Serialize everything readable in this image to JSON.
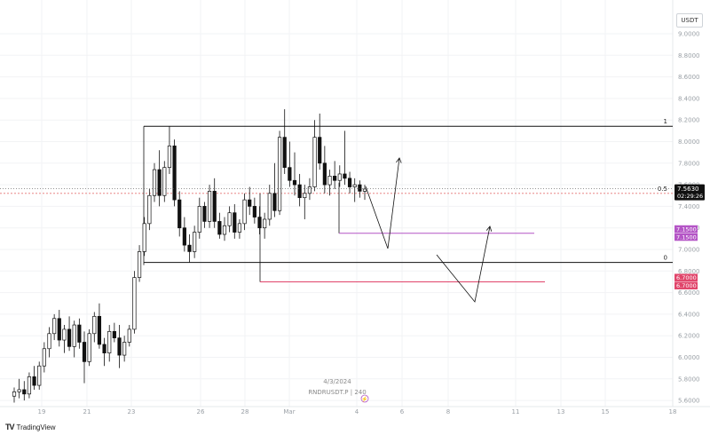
{
  "currency_button": "USDT",
  "watermark": {
    "date": "4/3/2024",
    "symbol": "RNDRUSDT.P | 240"
  },
  "brand": "TradingView",
  "colors": {
    "up": "#ffffff",
    "down": "#111111",
    "fib_line": "#111111",
    "half_line": "#e57373",
    "purple_level": "#b455c6",
    "pink_level": "#e0446a",
    "price_tag": "#111111",
    "grid": "#f2f3f5",
    "axis_text": "#9aa0a6"
  },
  "chart_data": {
    "type": "candlestick",
    "y_axis": {
      "ticks": [
        "9.0000",
        "8.8000",
        "8.6000",
        "8.4000",
        "8.2000",
        "8.0000",
        "7.8000",
        "7.6000",
        "7.4000",
        "7.2000",
        "7.0000",
        "6.8000",
        "6.6000",
        "6.4000",
        "6.2000",
        "6.0000",
        "5.8000",
        "5.6000"
      ],
      "ylim": [
        5.54,
        9.14
      ]
    },
    "x_axis": {
      "ticks": [
        "19",
        "21",
        "23",
        "26",
        "28",
        "Mar",
        "4",
        "6",
        "8",
        "11",
        "13",
        "15",
        "18"
      ]
    },
    "current_price": {
      "value": "7.5630",
      "countdown": "02:29:26"
    },
    "fib_levels": [
      {
        "label": "1",
        "value": 8.142
      },
      {
        "label": "0.5",
        "value": 7.52
      },
      {
        "label": "0",
        "value": 6.88
      }
    ],
    "horizontal_levels": [
      {
        "label": "7.1500",
        "value": 7.15,
        "color": "purple",
        "tags": [
          "7.1500",
          "7.1500"
        ]
      },
      {
        "label": "6.7000",
        "value": 6.7,
        "color": "pink",
        "tags": [
          "6.7000",
          "6.7000"
        ]
      }
    ],
    "candles": [
      [
        5.64,
        5.72,
        5.58,
        5.68
      ],
      [
        5.68,
        5.8,
        5.62,
        5.7
      ],
      [
        5.7,
        5.78,
        5.6,
        5.66
      ],
      [
        5.66,
        5.86,
        5.62,
        5.82
      ],
      [
        5.82,
        5.92,
        5.7,
        5.74
      ],
      [
        5.74,
        5.96,
        5.7,
        5.92
      ],
      [
        5.92,
        6.14,
        5.86,
        6.08
      ],
      [
        6.08,
        6.28,
        6.0,
        6.22
      ],
      [
        6.22,
        6.4,
        6.16,
        6.36
      ],
      [
        6.36,
        6.44,
        6.1,
        6.16
      ],
      [
        6.16,
        6.3,
        6.04,
        6.26
      ],
      [
        6.26,
        6.38,
        6.06,
        6.1
      ],
      [
        6.1,
        6.34,
        6.0,
        6.3
      ],
      [
        6.3,
        6.36,
        6.08,
        6.14
      ],
      [
        6.14,
        6.24,
        5.76,
        5.96
      ],
      [
        5.96,
        6.26,
        5.92,
        6.22
      ],
      [
        6.22,
        6.42,
        6.14,
        6.38
      ],
      [
        6.38,
        6.5,
        6.08,
        6.12
      ],
      [
        6.12,
        6.18,
        5.92,
        6.04
      ],
      [
        6.04,
        6.3,
        5.96,
        6.24
      ],
      [
        6.24,
        6.32,
        6.14,
        6.18
      ],
      [
        6.18,
        6.3,
        5.9,
        6.02
      ],
      [
        6.02,
        6.2,
        5.96,
        6.14
      ],
      [
        6.14,
        6.3,
        6.1,
        6.26
      ],
      [
        6.26,
        6.8,
        6.22,
        6.74
      ],
      [
        6.74,
        7.04,
        6.7,
        6.98
      ],
      [
        6.98,
        7.3,
        6.94,
        7.24
      ],
      [
        7.24,
        7.56,
        7.18,
        7.5
      ],
      [
        7.5,
        7.8,
        7.44,
        7.74
      ],
      [
        7.74,
        7.92,
        7.4,
        7.5
      ],
      [
        7.5,
        7.82,
        7.44,
        7.76
      ],
      [
        7.76,
        8.14,
        7.7,
        7.96
      ],
      [
        7.96,
        8.02,
        7.4,
        7.46
      ],
      [
        7.46,
        7.54,
        7.12,
        7.2
      ],
      [
        7.2,
        7.3,
        6.98,
        7.04
      ],
      [
        7.04,
        7.14,
        6.88,
        6.98
      ],
      [
        6.98,
        7.22,
        6.92,
        7.16
      ],
      [
        7.16,
        7.48,
        7.1,
        7.4
      ],
      [
        7.4,
        7.44,
        7.2,
        7.26
      ],
      [
        7.26,
        7.6,
        7.2,
        7.54
      ],
      [
        7.54,
        7.66,
        7.2,
        7.26
      ],
      [
        7.26,
        7.34,
        7.1,
        7.14
      ],
      [
        7.14,
        7.3,
        7.08,
        7.22
      ],
      [
        7.22,
        7.4,
        7.16,
        7.34
      ],
      [
        7.34,
        7.42,
        7.1,
        7.16
      ],
      [
        7.16,
        7.28,
        7.1,
        7.24
      ],
      [
        7.24,
        7.52,
        7.18,
        7.46
      ],
      [
        7.46,
        7.58,
        7.32,
        7.4
      ],
      [
        7.4,
        7.48,
        7.24,
        7.3
      ],
      [
        7.3,
        7.4,
        7.14,
        7.2
      ],
      [
        7.2,
        7.34,
        7.1,
        7.28
      ],
      [
        7.28,
        7.6,
        7.22,
        7.52
      ],
      [
        7.52,
        7.8,
        7.3,
        7.36
      ],
      [
        7.36,
        8.1,
        7.32,
        8.04
      ],
      [
        8.04,
        8.3,
        7.7,
        7.76
      ],
      [
        7.76,
        8.0,
        7.58,
        7.64
      ],
      [
        7.64,
        7.9,
        7.5,
        7.6
      ],
      [
        7.6,
        7.7,
        7.4,
        7.48
      ],
      [
        7.48,
        7.6,
        7.28,
        7.52
      ],
      [
        7.52,
        7.66,
        7.46,
        7.58
      ],
      [
        7.58,
        8.2,
        7.54,
        8.04
      ],
      [
        8.04,
        8.26,
        7.74,
        7.8
      ],
      [
        7.8,
        7.96,
        7.52,
        7.6
      ],
      [
        7.6,
        7.74,
        7.5,
        7.68
      ],
      [
        7.68,
        7.82,
        7.56,
        7.64
      ],
      [
        7.64,
        7.78,
        7.58,
        7.7
      ],
      [
        7.7,
        8.1,
        7.6,
        7.66
      ],
      [
        7.66,
        7.72,
        7.52,
        7.58
      ],
      [
        7.58,
        7.66,
        7.44,
        7.6
      ],
      [
        7.6,
        7.64,
        7.48,
        7.54
      ],
      [
        7.54,
        7.6,
        7.46,
        7.56
      ]
    ],
    "projections": [
      [
        [
          412,
          210
        ],
        [
          437,
          280
        ],
        [
          450,
          178
        ]
      ],
      [
        [
          492,
          287
        ],
        [
          535,
          340
        ],
        [
          552,
          255
        ]
      ]
    ]
  }
}
